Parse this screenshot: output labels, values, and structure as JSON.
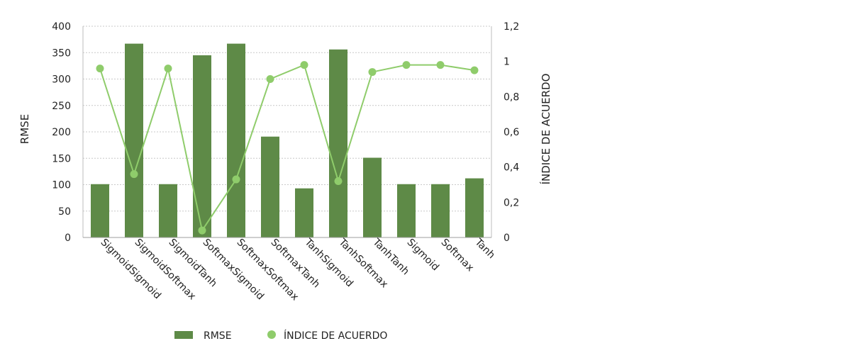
{
  "chart_data": {
    "type": "bar",
    "categories": [
      "SigmoidSigmoid",
      "SigmoidSoftmax",
      "SigmoidTanh",
      "SoftmaxSigmoid",
      "SoftmaxSoftmax",
      "SoftmaxTanh",
      "TanhSigmoid",
      "TanhSoftmax",
      "TanhTanh",
      "Sigmoid",
      "Softmax",
      "Tanh"
    ],
    "series": [
      {
        "name": "RMSE",
        "type": "bar",
        "axis": "left",
        "color": "#5e8a47",
        "values": [
          101,
          367,
          101,
          345,
          367,
          191,
          93,
          356,
          151,
          101,
          101,
          112
        ]
      },
      {
        "name": "ÍNDICE DE ACUERDO",
        "type": "line",
        "axis": "right",
        "color": "#8fcc6b",
        "values": [
          0.96,
          0.36,
          0.96,
          0.04,
          0.33,
          0.9,
          0.98,
          0.32,
          0.94,
          0.98,
          0.98,
          0.95
        ]
      }
    ],
    "ylabel": "RMSE",
    "y2label": "ÍNDICE DE ACUERDO",
    "ylim": [
      0,
      400
    ],
    "y2lim": [
      0,
      1.2
    ],
    "yticks": [
      "0",
      "50",
      "100",
      "150",
      "200",
      "250",
      "300",
      "350",
      "400"
    ],
    "y2ticks": [
      "0",
      "0,2",
      "0,4",
      "0,6",
      "0,8",
      "1",
      "1,2"
    ],
    "grid": true,
    "legend_position": "bottom"
  }
}
